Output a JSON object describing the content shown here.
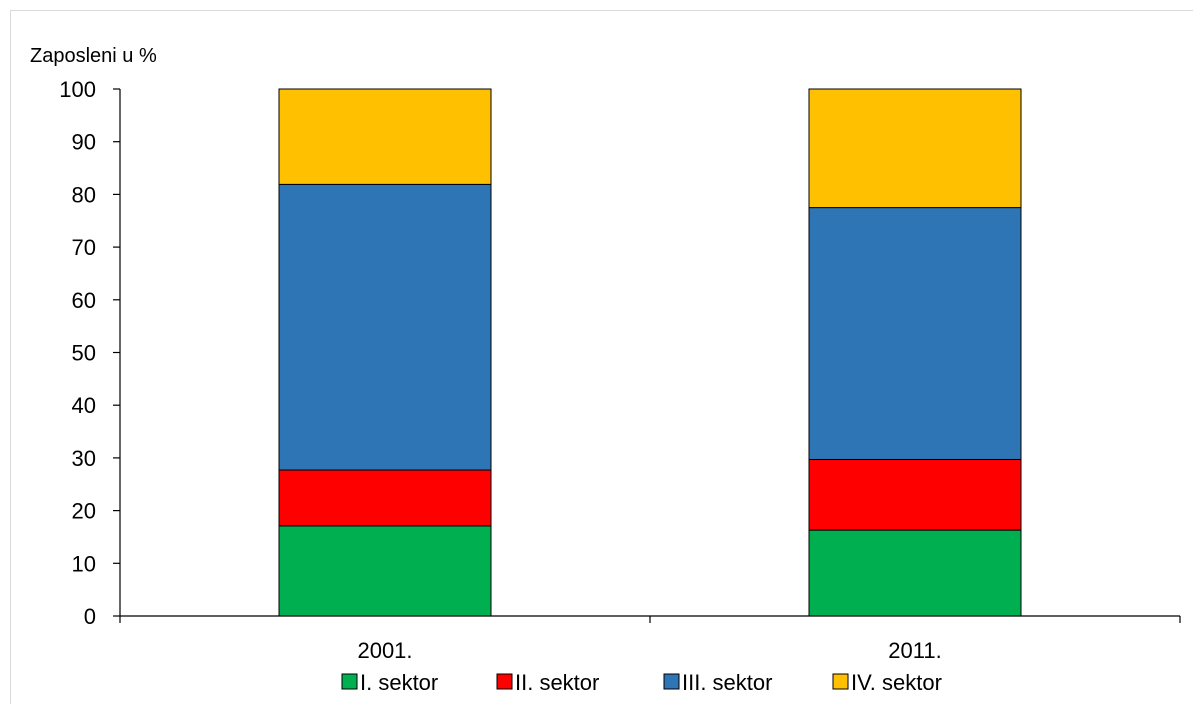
{
  "chart_data": {
    "type": "bar",
    "stacked": true,
    "ylabel": "Zaposleni u %",
    "ylim": [
      0,
      100
    ],
    "yticks": [
      "0",
      "10",
      "20",
      "30",
      "40",
      "50",
      "60",
      "70",
      "80",
      "90",
      "100"
    ],
    "categories": [
      "2001.",
      "2011."
    ],
    "series": [
      {
        "name": "I. sektor",
        "color": "#00b050",
        "values": [
          17.1,
          16.3
        ]
      },
      {
        "name": "II. sektor",
        "color": "#ff0000",
        "values": [
          10.6,
          13.4
        ]
      },
      {
        "name": "III. sektor",
        "color": "#2e75b6",
        "values": [
          54.2,
          47.8
        ]
      },
      {
        "name": "IV. sektor",
        "color": "#ffc000",
        "values": [
          18.1,
          22.5
        ]
      }
    ],
    "grid": false,
    "legend_position": "bottom"
  }
}
